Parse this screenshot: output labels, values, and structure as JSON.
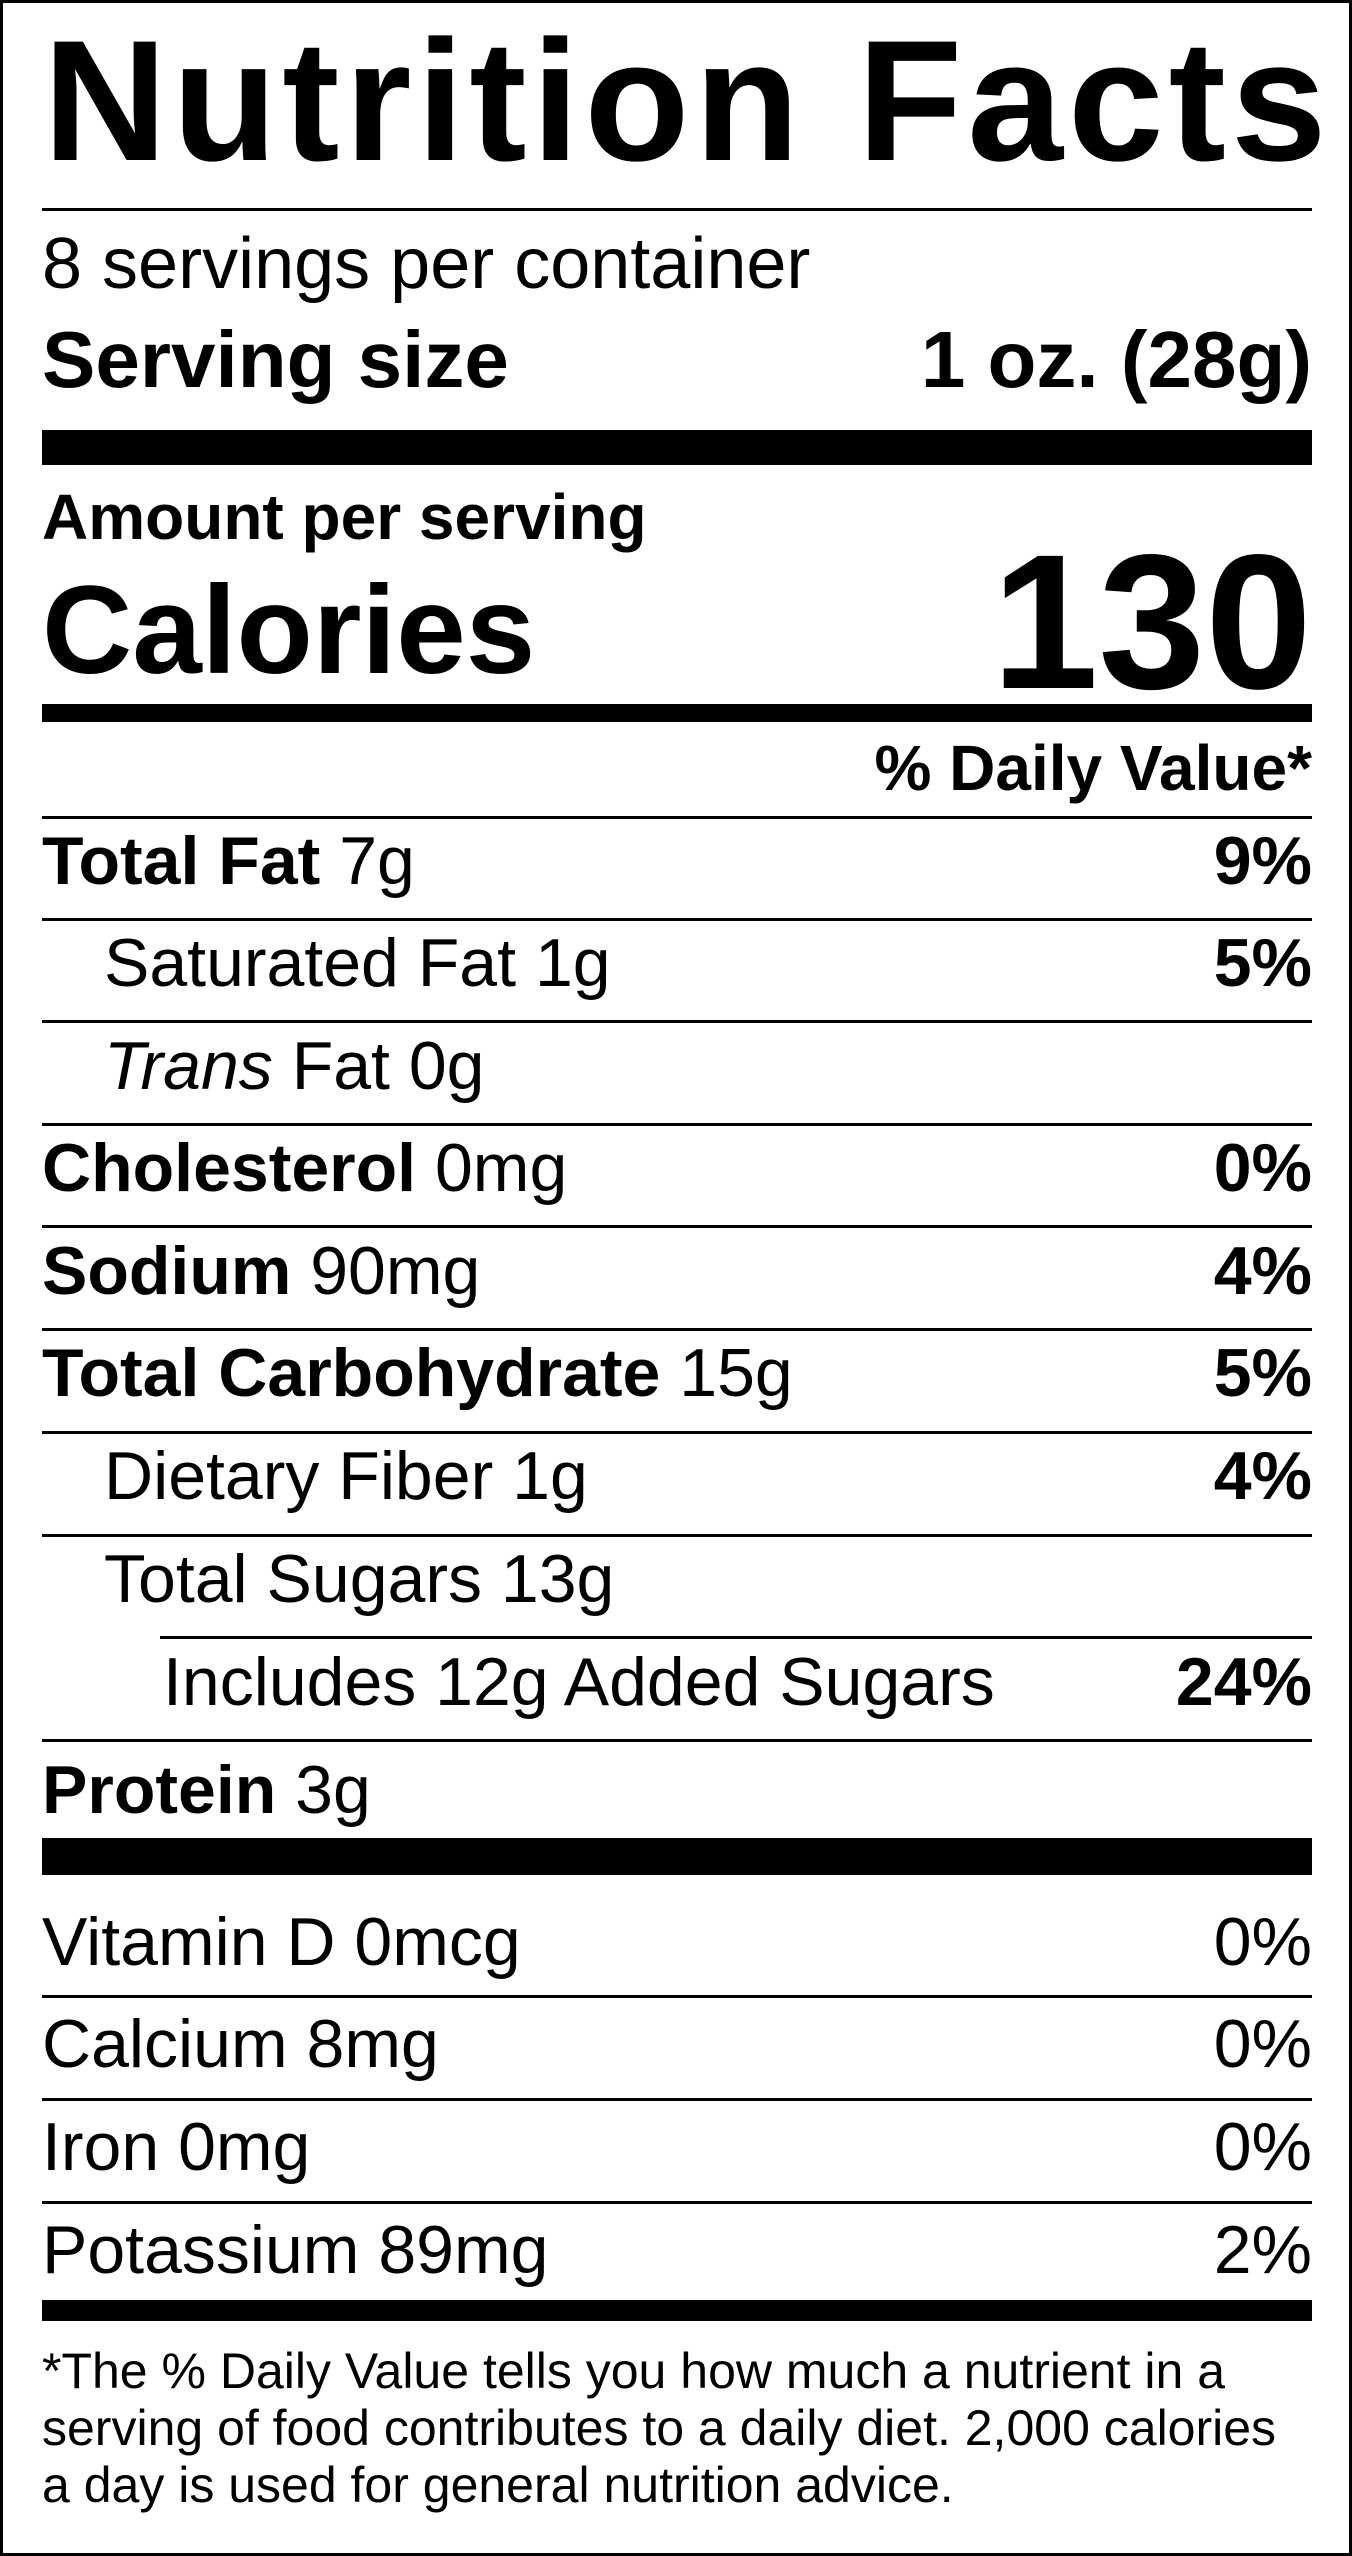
{
  "title": "Nutrition Facts",
  "servings_per_container": "8 servings per container",
  "serving_size": {
    "label": "Serving size",
    "value": "1 oz. (28g)"
  },
  "amount_per_serving": "Amount per serving",
  "calories": {
    "label": "Calories",
    "value": "130"
  },
  "daily_value_header": "% Daily Value*",
  "nutrients": [
    {
      "name": "Total Fat",
      "amount": "7g",
      "dv": "9%"
    },
    {
      "name": "Saturated Fat",
      "amount": "1g",
      "dv": "5%"
    },
    {
      "name_italic": "Trans",
      "name": "Fat",
      "amount": "0g",
      "dv": ""
    },
    {
      "name": "Cholesterol",
      "amount": "0mg",
      "dv": "0%"
    },
    {
      "name": "Sodium",
      "amount": "90mg",
      "dv": "4%"
    },
    {
      "name": "Total Carbohydrate",
      "amount": "15g",
      "dv": "5%"
    },
    {
      "name": "Dietary Fiber",
      "amount": "1g",
      "dv": "4%"
    },
    {
      "name": "Total Sugars",
      "amount": "13g",
      "dv": ""
    },
    {
      "name": "Includes 12g Added Sugars",
      "amount": "",
      "dv": "24%"
    },
    {
      "name": "Protein",
      "amount": "3g",
      "dv": ""
    }
  ],
  "vitamins": [
    {
      "name": "Vitamin D 0mcg",
      "dv": "0%"
    },
    {
      "name": "Calcium 8mg",
      "dv": "0%"
    },
    {
      "name": "Iron 0mg",
      "dv": "0%"
    },
    {
      "name": "Potassium 89mg",
      "dv": "2%"
    }
  ],
  "footnote": "*The % Daily Value tells you how much a nutrient in a serving of food contributes to a daily diet. 2,000 calories a day is used for general nutrition advice."
}
